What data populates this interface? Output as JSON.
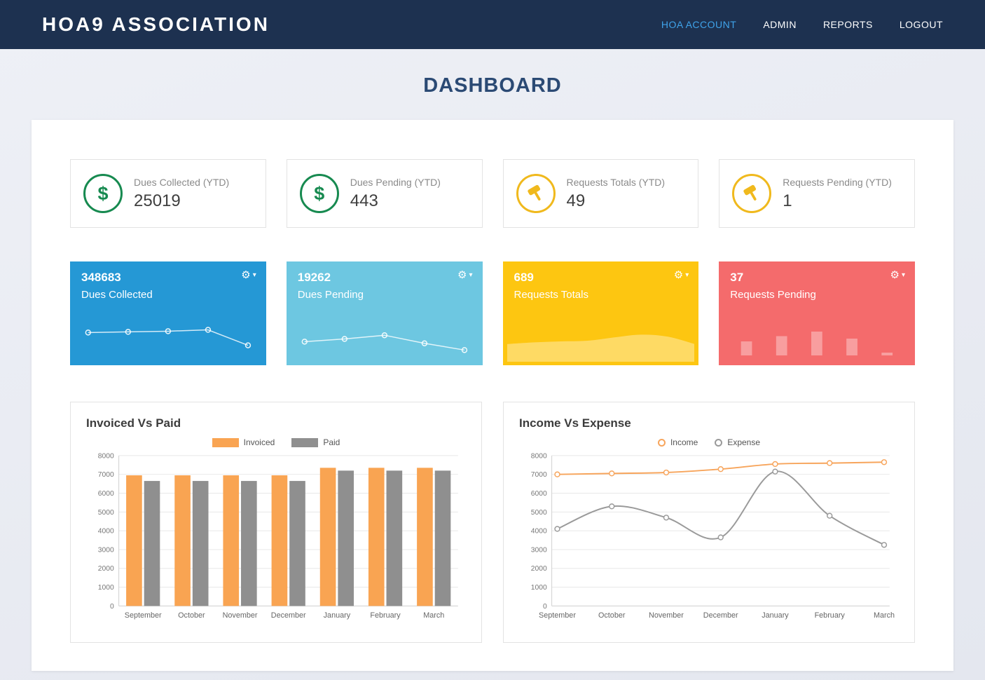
{
  "navbar": {
    "brand": "HOA9 ASSOCIATION",
    "links": [
      {
        "label": "HOA ACCOUNT",
        "active": true
      },
      {
        "label": "ADMIN",
        "active": false
      },
      {
        "label": "REPORTS",
        "active": false
      },
      {
        "label": "LOGOUT",
        "active": false
      }
    ],
    "active_color": "#3fa3ea",
    "background": "#1d3150"
  },
  "page_title": "DASHBOARD",
  "stat_cards": [
    {
      "icon": "dollar-icon",
      "label": "Dues Collected (YTD)",
      "value": "25019",
      "accent": "#178a50"
    },
    {
      "icon": "dollar-icon",
      "label": "Dues Pending (YTD)",
      "value": "443",
      "accent": "#178a50"
    },
    {
      "icon": "hammer-icon",
      "label": "Requests Totals (YTD)",
      "value": "49",
      "accent": "#f0b91d"
    },
    {
      "icon": "hammer-icon",
      "label": "Requests Pending (YTD)",
      "value": "1",
      "accent": "#f0b91d"
    }
  ],
  "summary_panels": [
    {
      "value": "348683",
      "label": "Dues Collected",
      "color": "#2598d5",
      "menu_icon": "gear-icon",
      "sparkline": {
        "type": "line",
        "values": [
          68,
          70,
          72,
          76,
          30
        ]
      }
    },
    {
      "value": "19262",
      "label": "Dues Pending",
      "color": "#6dc7e1",
      "menu_icon": "gear-icon",
      "sparkline": {
        "type": "line",
        "values": [
          41,
          49,
          60,
          36,
          16
        ]
      }
    },
    {
      "value": "689",
      "label": "Requests Totals",
      "color": "#fdc611",
      "menu_icon": "gear-icon",
      "sparkline": {
        "type": "area",
        "values": [
          40,
          45,
          48,
          50,
          60,
          68,
          62,
          40
        ]
      }
    },
    {
      "value": "37",
      "label": "Requests Pending",
      "color": "#f46b6c",
      "menu_icon": "gear-icon",
      "sparkline": {
        "type": "bars",
        "values": [
          40,
          55,
          68,
          48,
          8
        ]
      }
    }
  ],
  "chart_data": [
    {
      "type": "bar",
      "title": "Invoiced Vs Paid",
      "categories": [
        "September",
        "October",
        "November",
        "December",
        "January",
        "February",
        "March"
      ],
      "series": [
        {
          "name": "Invoiced",
          "color": "#f9a452",
          "values": [
            6950,
            6950,
            6950,
            6950,
            7350,
            7350,
            7350
          ]
        },
        {
          "name": "Paid",
          "color": "#8f8f8f",
          "values": [
            6650,
            6650,
            6650,
            6650,
            7200,
            7200,
            7200
          ]
        }
      ],
      "ylim": [
        0,
        8000
      ],
      "ytick_step": 1000,
      "grid": true,
      "legend_position": "top"
    },
    {
      "type": "line",
      "title": "Income Vs Expense",
      "categories": [
        "September",
        "October",
        "November",
        "December",
        "January",
        "February",
        "March"
      ],
      "series": [
        {
          "name": "Income",
          "color": "#f7a55c",
          "values": [
            7000,
            7050,
            7100,
            7280,
            7550,
            7600,
            7650
          ]
        },
        {
          "name": "Expense",
          "color": "#9a9a9a",
          "values": [
            4100,
            5300,
            4700,
            3650,
            7150,
            4800,
            3250
          ]
        }
      ],
      "ylim": [
        0,
        8000
      ],
      "ytick_step": 1000,
      "grid": true,
      "legend_position": "top"
    }
  ]
}
